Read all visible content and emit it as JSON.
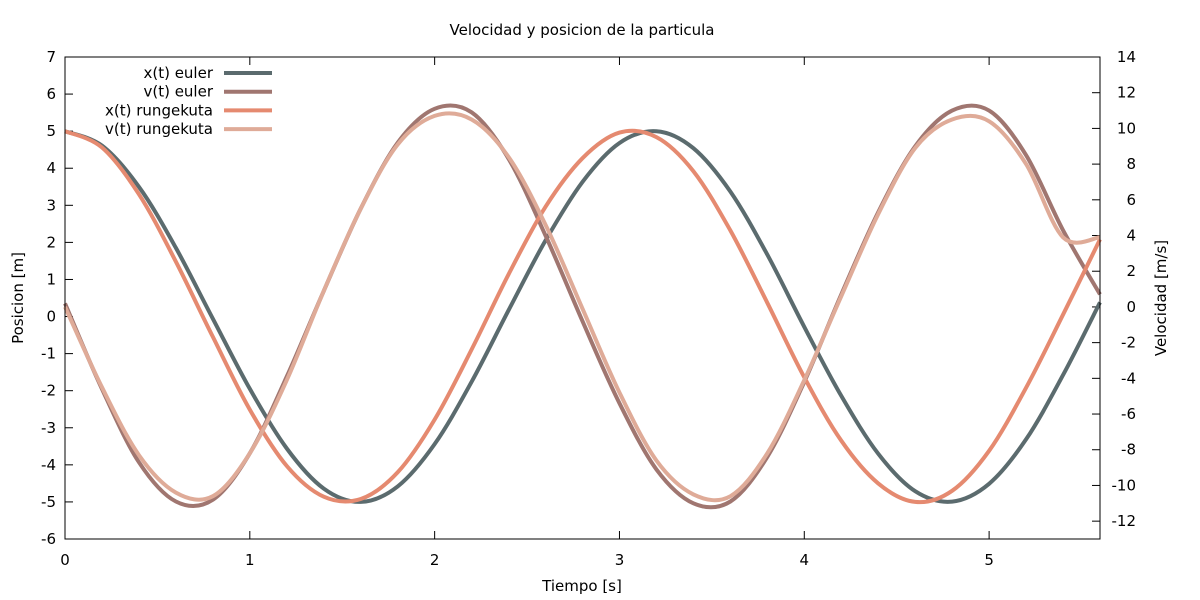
{
  "chart_data": {
    "type": "line",
    "title": "Velocidad y posicion de la particula",
    "xlabel": "Tiempo [s]",
    "ylabel": "Posicion [m]",
    "y2label": "Velocidad [m/s]",
    "xlim": [
      0,
      5.6
    ],
    "ylim": [
      -6,
      7
    ],
    "y2lim": [
      -13,
      14
    ],
    "xticks": [
      0,
      1,
      2,
      3,
      4,
      5
    ],
    "xtick_labels": [
      "0",
      "1",
      "2",
      "3",
      "4",
      "5"
    ],
    "yticks": [
      -6,
      -5,
      -4,
      -3,
      -2,
      -1,
      0,
      1,
      2,
      3,
      4,
      5,
      6,
      7
    ],
    "ytick_labels": [
      "-6",
      "-5",
      "-4",
      "-3",
      "-2",
      "-1",
      "0",
      "1",
      "2",
      "3",
      "4",
      "5",
      "6",
      "7"
    ],
    "y2ticks": [
      -12,
      -10,
      -8,
      -6,
      -4,
      -2,
      0,
      2,
      4,
      6,
      8,
      10,
      12,
      14
    ],
    "y2tick_labels": [
      "-12",
      "-10",
      "-8",
      "-6",
      "-4",
      "-2",
      "0",
      "2",
      "4",
      "6",
      "8",
      "10",
      "12",
      "14"
    ],
    "grid": false,
    "legend_position": "top-left",
    "series": [
      {
        "name": "x(t) euler",
        "axis": "y",
        "color": "#5b6b6e",
        "x": [
          0,
          0.2,
          0.4,
          0.6,
          0.8,
          1.0,
          1.2,
          1.4,
          1.6,
          1.8,
          2.0,
          2.2,
          2.4,
          2.6,
          2.8,
          3.0,
          3.2,
          3.4,
          3.6,
          3.8,
          4.0,
          4.2,
          4.4,
          4.6,
          4.8,
          5.0,
          5.2,
          5.4,
          5.6
        ],
        "y": [
          5.0,
          4.61,
          3.5,
          1.85,
          -0.06,
          -1.95,
          -3.56,
          -4.64,
          -5.0,
          -4.58,
          -3.44,
          -1.76,
          0.17,
          2.05,
          3.63,
          4.68,
          5.0,
          4.54,
          3.37,
          1.67,
          -0.28,
          -2.14,
          -3.7,
          -4.71,
          -4.99,
          -4.51,
          -3.31,
          -1.58,
          0.38
        ]
      },
      {
        "name": "v(t) euler",
        "axis": "y2",
        "color": "#a07670",
        "x": [
          0,
          0.2,
          0.4,
          0.6,
          0.8,
          1.0,
          1.2,
          1.4,
          1.6,
          1.8,
          2.0,
          2.2,
          2.4,
          2.6,
          2.8,
          3.0,
          3.2,
          3.4,
          3.6,
          3.8,
          4.0,
          4.2,
          4.4,
          4.6,
          4.8,
          5.0,
          5.2,
          5.4,
          5.6
        ],
        "y": [
          0.2,
          -4.6,
          -8.7,
          -10.9,
          -10.8,
          -8.2,
          -3.9,
          0.9,
          5.5,
          9.2,
          11.1,
          10.9,
          8.3,
          4.0,
          -0.8,
          -5.4,
          -9.1,
          -11.0,
          -10.9,
          -8.4,
          -4.2,
          0.7,
          5.3,
          9.0,
          11.0,
          11.0,
          8.5,
          4.3,
          0.7
        ]
      },
      {
        "name": "x(t) rungekuta",
        "axis": "y",
        "color": "#e58a70",
        "x": [
          0,
          0.2,
          0.4,
          0.6,
          0.8,
          1.0,
          1.2,
          1.4,
          1.6,
          1.8,
          2.0,
          2.2,
          2.4,
          2.6,
          2.8,
          3.0,
          3.2,
          3.4,
          3.6,
          3.8,
          4.0,
          4.2,
          4.4,
          4.6,
          4.8,
          5.0,
          5.2,
          5.4,
          5.6
        ],
        "y": [
          5.0,
          4.56,
          3.3,
          1.48,
          -0.55,
          -2.51,
          -4.03,
          -4.86,
          -4.92,
          -4.2,
          -2.78,
          -0.89,
          1.14,
          2.96,
          4.27,
          4.96,
          4.84,
          3.92,
          2.32,
          0.37,
          -1.64,
          -3.35,
          -4.5,
          -5.0,
          -4.7,
          -3.62,
          -1.92,
          0.05,
          2.08
        ]
      },
      {
        "name": "v(t) rungekuta",
        "axis": "y2",
        "color": "#dfab98",
        "x": [
          0,
          0.2,
          0.4,
          0.6,
          0.8,
          1.0,
          1.2,
          1.4,
          1.6,
          1.8,
          2.0,
          2.2,
          2.4,
          2.6,
          2.8,
          3.0,
          3.2,
          3.4,
          3.6,
          3.8,
          4.0,
          4.2,
          4.4,
          4.6,
          4.8,
          5.0,
          5.2,
          5.4,
          5.6
        ],
        "y": [
          0,
          -4.5,
          -8.3,
          -10.4,
          -10.6,
          -8.2,
          -4.1,
          0.9,
          5.5,
          9.1,
          10.7,
          10.5,
          8.4,
          4.6,
          -0.1,
          -4.8,
          -8.6,
          -10.5,
          -10.6,
          -8.2,
          -4.1,
          0.6,
          5.2,
          8.9,
          10.5,
          10.4,
          8.0,
          3.9,
          3.9
        ]
      }
    ]
  }
}
